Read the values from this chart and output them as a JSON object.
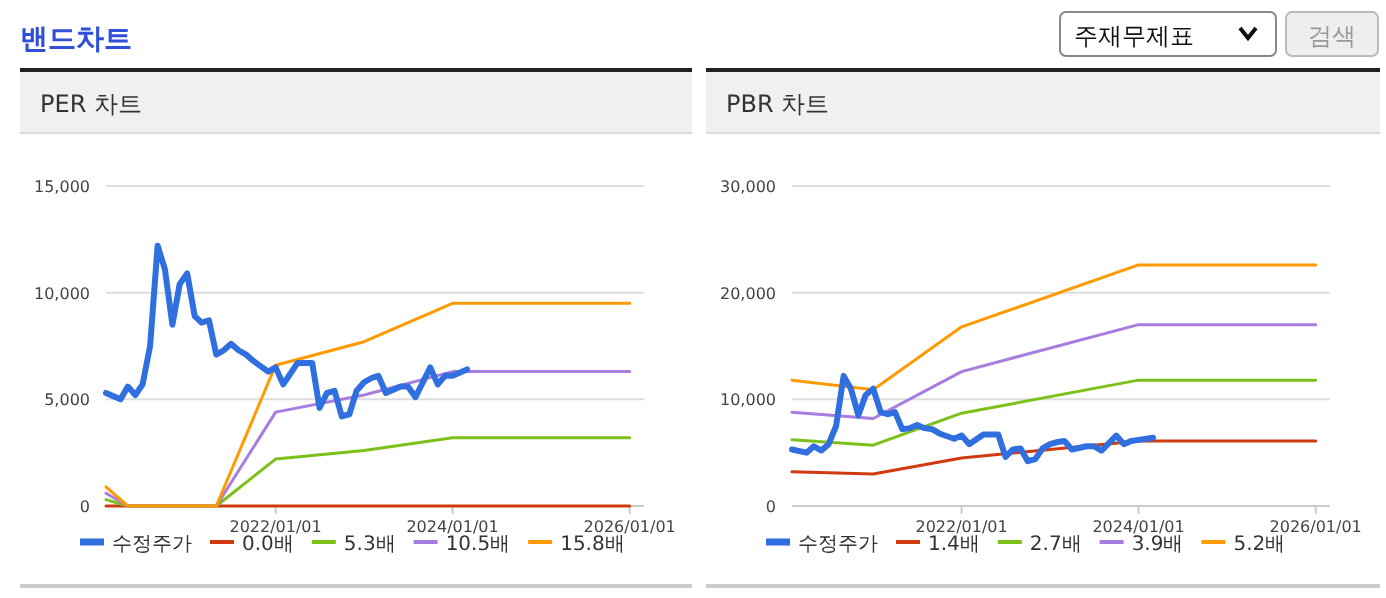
{
  "chart_data": [
    {
      "type": "line",
      "title": "PER 차트",
      "annotations": [
        "밴드차트",
        "주재무제표",
        "검색"
      ],
      "xlim": [
        "2020-02",
        "2026-03"
      ],
      "xticks": [
        {
          "value": "2022-01-01",
          "label": "2022/01/01"
        },
        {
          "value": "2024-01-01",
          "label": "2024/01/01"
        },
        {
          "value": "2026-01-01",
          "label": "2026/01/01"
        }
      ],
      "ylim": [
        0,
        15000
      ],
      "yticks": [
        {
          "value": 0,
          "label": "0"
        },
        {
          "value": 5000,
          "label": "5,000"
        },
        {
          "value": 10000,
          "label": "10,000"
        },
        {
          "value": 15000,
          "label": "15,000"
        }
      ],
      "grid": "y",
      "legend": "bottom",
      "series": [
        {
          "name": "수정주가",
          "color": "#2f6fdf",
          "x": [
            "2020-02",
            "2020-04",
            "2020-05",
            "2020-06",
            "2020-07",
            "2020-08",
            "2020-09",
            "2020-10",
            "2020-11",
            "2020-12",
            "2021-01",
            "2021-02",
            "2021-03",
            "2021-04",
            "2021-05",
            "2021-06",
            "2021-07",
            "2021-08",
            "2021-09",
            "2021-10",
            "2021-12",
            "2022-01",
            "2022-02",
            "2022-04",
            "2022-06",
            "2022-07",
            "2022-08",
            "2022-09",
            "2022-10",
            "2022-11",
            "2022-12",
            "2023-01",
            "2023-02",
            "2023-03",
            "2023-04",
            "2023-06",
            "2023-07",
            "2023-08",
            "2023-10",
            "2023-11",
            "2023-12",
            "2024-01",
            "2024-03"
          ],
          "values": [
            5300,
            5000,
            5600,
            5200,
            5700,
            7500,
            12200,
            11100,
            8500,
            10400,
            10900,
            8900,
            8600,
            8700,
            7100,
            7300,
            7600,
            7300,
            7100,
            6800,
            6300,
            6500,
            5700,
            6700,
            6700,
            4600,
            5300,
            5400,
            4200,
            4300,
            5400,
            5800,
            6000,
            6100,
            5300,
            5600,
            5600,
            5100,
            6500,
            5700,
            6100,
            6100,
            6400
          ]
        },
        {
          "name": "0.0배",
          "color": "#d13a10",
          "x": [
            "2020-02",
            "2020-05",
            "2021-05",
            "2022-01",
            "2023-01",
            "2024-01",
            "2026-01"
          ],
          "values": [
            0,
            0,
            0,
            0,
            0,
            0,
            0
          ]
        },
        {
          "name": "5.3배",
          "color": "#7cc01a",
          "x": [
            "2020-02",
            "2020-05",
            "2021-05",
            "2022-01",
            "2023-01",
            "2024-01",
            "2026-01"
          ],
          "values": [
            300,
            0,
            0,
            2200,
            2600,
            3200,
            3200
          ]
        },
        {
          "name": "10.5배",
          "color": "#a77de0",
          "x": [
            "2020-02",
            "2020-05",
            "2021-05",
            "2022-01",
            "2023-01",
            "2024-01",
            "2026-01"
          ],
          "values": [
            600,
            0,
            0,
            4400,
            5200,
            6300,
            6300
          ]
        },
        {
          "name": "15.8배",
          "color": "#ff9a00",
          "x": [
            "2020-02",
            "2020-05",
            "2021-05",
            "2022-01",
            "2023-01",
            "2024-01",
            "2026-01"
          ],
          "values": [
            900,
            0,
            0,
            6600,
            7700,
            9500,
            9500
          ]
        }
      ]
    },
    {
      "type": "line",
      "title": "PBR 차트",
      "xlim": [
        "2020-02",
        "2026-03"
      ],
      "xticks": [
        {
          "value": "2022-01-01",
          "label": "2022/01/01"
        },
        {
          "value": "2024-01-01",
          "label": "2024/01/01"
        },
        {
          "value": "2026-01-01",
          "label": "2026/01/01"
        }
      ],
      "ylim": [
        0,
        30000
      ],
      "yticks": [
        {
          "value": 0,
          "label": "0"
        },
        {
          "value": 10000,
          "label": "10,000"
        },
        {
          "value": 20000,
          "label": "20,000"
        },
        {
          "value": 30000,
          "label": "30,000"
        }
      ],
      "grid": "y",
      "legend": "bottom",
      "series": [
        {
          "name": "수정주가",
          "color": "#2f6fdf",
          "x": [
            "2020-02",
            "2020-04",
            "2020-05",
            "2020-06",
            "2020-07",
            "2020-08",
            "2020-09",
            "2020-10",
            "2020-11",
            "2020-12",
            "2021-01",
            "2021-02",
            "2021-03",
            "2021-04",
            "2021-05",
            "2021-06",
            "2021-07",
            "2021-08",
            "2021-09",
            "2021-10",
            "2021-12",
            "2022-01",
            "2022-02",
            "2022-04",
            "2022-06",
            "2022-07",
            "2022-08",
            "2022-09",
            "2022-10",
            "2022-11",
            "2022-12",
            "2023-01",
            "2023-02",
            "2023-03",
            "2023-04",
            "2023-06",
            "2023-07",
            "2023-08",
            "2023-10",
            "2023-11",
            "2023-12",
            "2024-01",
            "2024-03"
          ],
          "values": [
            5300,
            5000,
            5600,
            5200,
            5800,
            7500,
            12200,
            11000,
            8500,
            10400,
            11000,
            8800,
            8600,
            8800,
            7200,
            7300,
            7600,
            7300,
            7200,
            6800,
            6300,
            6600,
            5800,
            6700,
            6700,
            4600,
            5300,
            5400,
            4200,
            4400,
            5400,
            5800,
            6000,
            6100,
            5300,
            5600,
            5600,
            5200,
            6600,
            5800,
            6100,
            6200,
            6400
          ]
        },
        {
          "name": "1.4배",
          "color": "#d13a10",
          "x": [
            "2020-02",
            "2021-01",
            "2022-01",
            "2024-01",
            "2026-01"
          ],
          "values": [
            3200,
            3000,
            4500,
            6100,
            6100
          ]
        },
        {
          "name": "2.7배",
          "color": "#7cc01a",
          "x": [
            "2020-02",
            "2021-01",
            "2022-01",
            "2024-01",
            "2026-01"
          ],
          "values": [
            6200,
            5700,
            8700,
            11800,
            11800
          ]
        },
        {
          "name": "3.9배",
          "color": "#a77de0",
          "x": [
            "2020-02",
            "2021-01",
            "2022-01",
            "2024-01",
            "2026-01"
          ],
          "values": [
            8800,
            8200,
            12600,
            17000,
            17000
          ]
        },
        {
          "name": "5.2배",
          "color": "#ff9a00",
          "x": [
            "2020-02",
            "2021-01",
            "2022-01",
            "2024-01",
            "2026-01"
          ],
          "values": [
            11800,
            10900,
            16800,
            22600,
            22600
          ]
        }
      ]
    }
  ]
}
